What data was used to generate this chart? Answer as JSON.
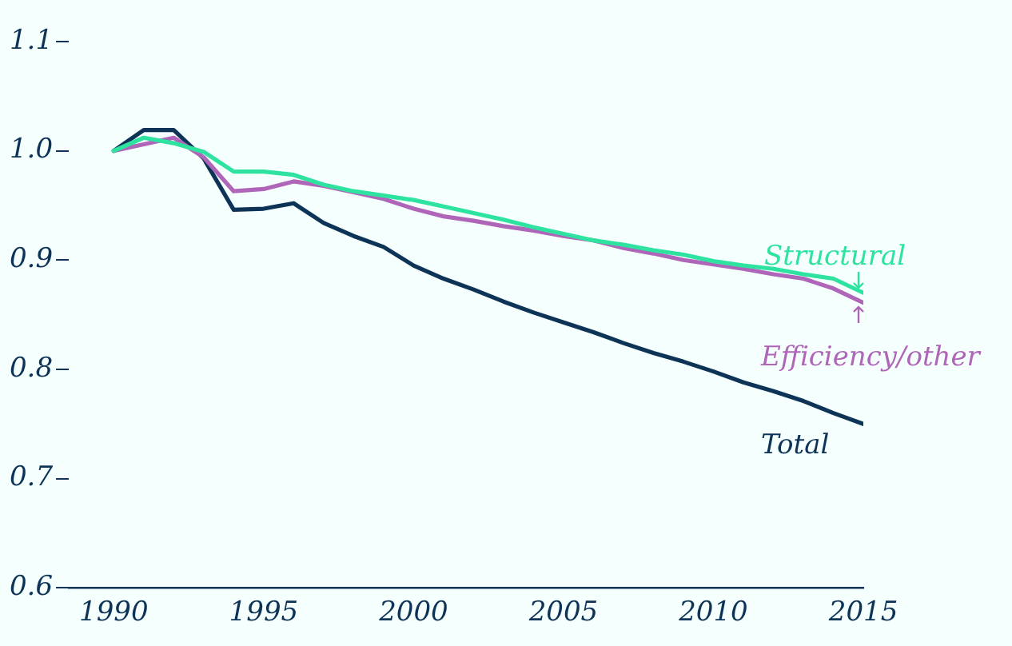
{
  "chart_data": {
    "type": "line",
    "x": [
      1990,
      1991,
      1992,
      1993,
      1994,
      1995,
      1996,
      1997,
      1998,
      1999,
      2000,
      2001,
      2002,
      2003,
      2004,
      2005,
      2006,
      2007,
      2008,
      2009,
      2010,
      2011,
      2012,
      2013,
      2014,
      2015
    ],
    "series": [
      {
        "name": "Structural",
        "color": "#2ee3a0",
        "values": [
          1.0,
          1.012,
          1.007,
          0.999,
          0.981,
          0.981,
          0.978,
          0.969,
          0.963,
          0.959,
          0.955,
          0.949,
          0.943,
          0.937,
          0.93,
          0.924,
          0.918,
          0.914,
          0.909,
          0.905,
          0.899,
          0.895,
          0.892,
          0.887,
          0.883,
          0.87
        ]
      },
      {
        "name": "Efficiency/other",
        "color": "#b066b8",
        "values": [
          1.0,
          1.006,
          1.012,
          0.994,
          0.963,
          0.965,
          0.972,
          0.968,
          0.962,
          0.956,
          0.947,
          0.94,
          0.936,
          0.931,
          0.927,
          0.922,
          0.918,
          0.911,
          0.906,
          0.9,
          0.896,
          0.892,
          0.887,
          0.883,
          0.874,
          0.861
        ]
      },
      {
        "name": "Total",
        "color": "#0d3357",
        "values": [
          1.0,
          1.019,
          1.019,
          0.993,
          0.946,
          0.947,
          0.952,
          0.934,
          0.922,
          0.912,
          0.895,
          0.883,
          0.873,
          0.862,
          0.852,
          0.843,
          0.834,
          0.824,
          0.815,
          0.807,
          0.798,
          0.788,
          0.78,
          0.771,
          0.76,
          0.75
        ]
      }
    ],
    "xlim": [
      1988.5,
      2015
    ],
    "xticks": [
      1990,
      1995,
      2000,
      2005,
      2010,
      2015
    ],
    "ylim": [
      0.6,
      1.1
    ],
    "yticks": [
      {
        "value": 0.6,
        "label": "0.6"
      },
      {
        "value": 0.7,
        "label": "0.7"
      },
      {
        "value": 0.8,
        "label": "0.8"
      },
      {
        "value": 0.9,
        "label": "0.9"
      },
      {
        "value": 1.0,
        "label": "1.0"
      },
      {
        "value": 1.1,
        "label": "1.1"
      }
    ],
    "grid": false,
    "legend": "right",
    "marker": "none",
    "line_style": "solid"
  }
}
